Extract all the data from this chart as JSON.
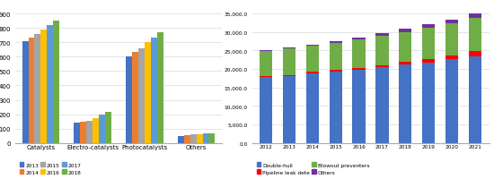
{
  "left": {
    "categories": [
      "Catalysts",
      "Electro-catalysts",
      "Photocatalysts",
      "Others"
    ],
    "series_labels": [
      "2013",
      "2014",
      "2015",
      "2016",
      "2017",
      "2018"
    ],
    "colors": [
      "#4472c4",
      "#ed7d31",
      "#a5a5a5",
      "#ffc000",
      "#5b9bd5",
      "#70ad47"
    ],
    "data": {
      "Catalysts": [
        710,
        730,
        760,
        790,
        820,
        850
      ],
      "Electro-catalysts": [
        140,
        148,
        155,
        175,
        200,
        215
      ],
      "Photocatalysts": [
        605,
        635,
        660,
        700,
        730,
        770
      ],
      "Others": [
        50,
        55,
        58,
        62,
        66,
        70
      ]
    },
    "ylim": [
      0,
      900
    ],
    "yticks": [
      0,
      100,
      200,
      300,
      400,
      500,
      600,
      700,
      800,
      900
    ]
  },
  "right": {
    "years": [
      "2012",
      "2013",
      "2014",
      "2015",
      "2016",
      "2017",
      "2018",
      "2019",
      "2020",
      "2021"
    ],
    "series_labels": [
      "Double-hull",
      "Pipeline leak dete",
      "Blowout preventers",
      "Others"
    ],
    "colors": [
      "#4472c4",
      "#ff0000",
      "#70ad47",
      "#7030a0"
    ],
    "data": {
      "Double-hull": [
        17800,
        18100,
        18900,
        19400,
        19800,
        20500,
        21200,
        21800,
        22600,
        23500
      ],
      "Pipeline leak dete": [
        200,
        250,
        300,
        400,
        500,
        600,
        700,
        900,
        1100,
        1300
      ],
      "Blowout preventers": [
        6800,
        7200,
        7000,
        7200,
        7600,
        7800,
        8100,
        8400,
        8700,
        9000
      ],
      "Others": [
        300,
        400,
        400,
        500,
        600,
        700,
        800,
        900,
        1000,
        1100
      ]
    },
    "ylim": [
      0,
      35000
    ],
    "yticks": [
      0,
      5000,
      10000,
      15000,
      20000,
      25000,
      30000,
      35000
    ],
    "ytick_labels": [
      "0.0",
      "5,000.0",
      "10,000.0",
      "15,000.0",
      "20,000.0",
      "25,000.0",
      "30,000.0",
      "35,000.0"
    ]
  },
  "fig_width": 5.5,
  "fig_height": 2.01,
  "dpi": 100
}
